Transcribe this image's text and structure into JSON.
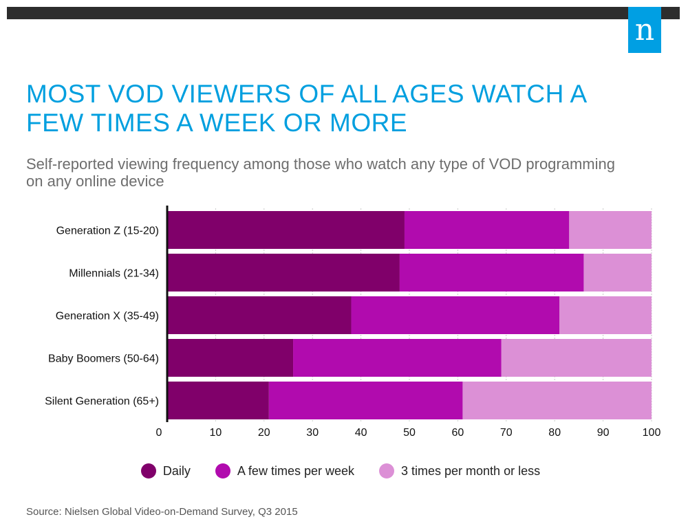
{
  "brand": {
    "logo_text": "n",
    "bar_color": "#2d2d2d",
    "logo_color": "#009fe3"
  },
  "header": {
    "title": "MOST VOD VIEWERS OF ALL AGES WATCH A FEW TIMES A WEEK OR MORE",
    "title_color": "#009fdf",
    "subtitle": "Self-reported viewing frequency among those who watch any type of VOD programming on any online device"
  },
  "chart_data": {
    "type": "bar",
    "orientation": "horizontal",
    "stacked": true,
    "categories": [
      "Generation Z (15-20)",
      "Millennials (21-34)",
      "Generation X (35-49)",
      "Baby Boomers (50-64)",
      "Silent Generation (65+)"
    ],
    "series": [
      {
        "name": "Daily",
        "color": "#80006a",
        "values": [
          49,
          48,
          38,
          26,
          21
        ]
      },
      {
        "name": "A few times per week",
        "color": "#b10bae",
        "values": [
          34,
          38,
          43,
          43,
          40
        ]
      },
      {
        "name": "3 times per month or less",
        "color": "#dc90d6",
        "values": [
          17,
          14,
          19,
          31,
          39
        ]
      }
    ],
    "xlim": [
      0,
      100
    ],
    "xticks": [
      0,
      10,
      20,
      30,
      40,
      50,
      60,
      70,
      80,
      90,
      100
    ],
    "grid": true,
    "legend_position": "bottom"
  },
  "footer": {
    "source": "Source: Nielsen Global Video-on-Demand Survey, Q3 2015"
  }
}
